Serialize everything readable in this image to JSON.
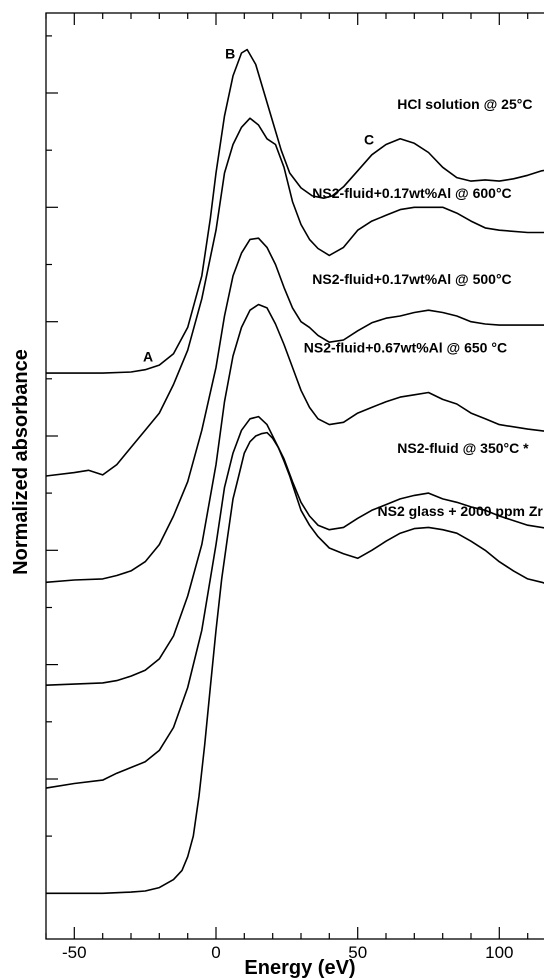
{
  "chart_data": {
    "type": "line",
    "xlabel": "Energy (eV)",
    "ylabel": "Normalized absorbance",
    "xlim": [
      -60,
      120
    ],
    "x_ticks": [
      "-50",
      "0",
      "50",
      "100"
    ],
    "x_tick_values": [
      -50,
      0,
      50,
      100
    ],
    "y_ticks_labeled": false,
    "peak_labels": [
      {
        "text": "A",
        "x": -24,
        "y": 7.65
      },
      {
        "text": "B",
        "x": 5,
        "y": 10.3
      },
      {
        "text": "C",
        "x": 54,
        "y": 9.55
      }
    ],
    "series": [
      {
        "name": "HCl solution @ 25°C",
        "label_anchor": [
          64,
          9.86
        ],
        "x": [
          -60,
          -40,
          -30,
          -25,
          -20,
          -15,
          -10,
          -5,
          -2,
          0,
          3,
          6,
          9,
          11,
          14,
          17,
          20,
          23,
          26,
          30,
          34,
          38,
          41,
          45,
          50,
          55,
          60,
          65,
          70,
          75,
          80,
          85,
          90,
          95,
          100,
          105,
          110,
          115,
          120
        ],
        "y": [
          7.55,
          7.55,
          7.56,
          7.58,
          7.62,
          7.72,
          7.95,
          8.4,
          8.9,
          9.3,
          9.8,
          10.15,
          10.35,
          10.38,
          10.25,
          10.0,
          9.75,
          9.5,
          9.3,
          9.17,
          9.1,
          9.08,
          9.1,
          9.18,
          9.32,
          9.46,
          9.55,
          9.6,
          9.56,
          9.48,
          9.35,
          9.26,
          9.23,
          9.24,
          9.23,
          9.25,
          9.28,
          9.32,
          9.34
        ]
      },
      {
        "name": "NS2-fluid+0.17wt%Al @ 600°C",
        "label_anchor": [
          34,
          9.08
        ],
        "x": [
          -60,
          -50,
          -45,
          -40,
          -35,
          -30,
          -25,
          -20,
          -15,
          -10,
          -5,
          0,
          3,
          6,
          9,
          12,
          15,
          18,
          21,
          24,
          27,
          30,
          33,
          36,
          40,
          45,
          50,
          55,
          60,
          65,
          70,
          75,
          80,
          85,
          90,
          95,
          100,
          110,
          120
        ],
        "y": [
          6.65,
          6.68,
          6.7,
          6.66,
          6.75,
          6.9,
          7.05,
          7.2,
          7.45,
          7.75,
          8.2,
          8.8,
          9.3,
          9.55,
          9.7,
          9.78,
          9.72,
          9.6,
          9.55,
          9.35,
          9.05,
          8.85,
          8.72,
          8.64,
          8.58,
          8.65,
          8.8,
          8.88,
          8.93,
          8.98,
          9.0,
          9.0,
          9.0,
          8.95,
          8.88,
          8.82,
          8.8,
          8.78,
          8.78
        ]
      },
      {
        "name": "NS2-fluid+0.17wt%Al @ 500°C",
        "label_anchor": [
          34,
          8.33
        ],
        "x": [
          -60,
          -50,
          -40,
          -35,
          -30,
          -25,
          -20,
          -15,
          -10,
          -5,
          0,
          3,
          6,
          9,
          12,
          15,
          18,
          21,
          24,
          27,
          30,
          33,
          36,
          40,
          45,
          50,
          55,
          60,
          65,
          70,
          75,
          80,
          85,
          90,
          95,
          100,
          110,
          120
        ],
        "y": [
          5.72,
          5.74,
          5.75,
          5.78,
          5.82,
          5.9,
          6.05,
          6.3,
          6.6,
          7.05,
          7.6,
          8.05,
          8.4,
          8.6,
          8.72,
          8.73,
          8.65,
          8.5,
          8.3,
          8.12,
          8.0,
          7.95,
          7.88,
          7.82,
          7.84,
          7.92,
          7.99,
          8.03,
          8.05,
          8.08,
          8.1,
          8.08,
          8.05,
          8.0,
          7.98,
          7.97,
          7.97,
          7.97
        ]
      },
      {
        "name": "NS2-fluid+0.67wt%Al @ 650 °C",
        "label_anchor": [
          31,
          7.73
        ],
        "x": [
          -60,
          -50,
          -40,
          -35,
          -30,
          -25,
          -20,
          -15,
          -10,
          -5,
          0,
          3,
          6,
          9,
          12,
          15,
          18,
          21,
          24,
          27,
          30,
          33,
          36,
          40,
          45,
          50,
          55,
          60,
          65,
          70,
          75,
          80,
          85,
          90,
          95,
          100,
          110,
          120
        ],
        "y": [
          4.82,
          4.83,
          4.84,
          4.86,
          4.9,
          4.95,
          5.05,
          5.25,
          5.6,
          6.05,
          6.75,
          7.3,
          7.7,
          7.95,
          8.1,
          8.15,
          8.12,
          7.98,
          7.8,
          7.6,
          7.4,
          7.25,
          7.15,
          7.1,
          7.12,
          7.2,
          7.25,
          7.3,
          7.34,
          7.36,
          7.38,
          7.32,
          7.28,
          7.2,
          7.15,
          7.1,
          7.06,
          7.03
        ]
      },
      {
        "name": "NS2-fluid @ 350°C *",
        "label_anchor": [
          64,
          6.85
        ],
        "x": [
          -60,
          -50,
          -40,
          -35,
          -30,
          -25,
          -20,
          -15,
          -10,
          -5,
          0,
          3,
          6,
          9,
          12,
          15,
          18,
          21,
          24,
          27,
          30,
          33,
          36,
          40,
          45,
          50,
          55,
          60,
          65,
          70,
          75,
          80,
          85,
          90,
          95,
          100,
          110,
          120
        ],
        "y": [
          3.92,
          3.96,
          3.99,
          4.05,
          4.1,
          4.15,
          4.25,
          4.45,
          4.8,
          5.3,
          6.05,
          6.55,
          6.85,
          7.05,
          7.15,
          7.17,
          7.1,
          6.95,
          6.8,
          6.6,
          6.42,
          6.3,
          6.22,
          6.18,
          6.2,
          6.28,
          6.35,
          6.4,
          6.45,
          6.48,
          6.5,
          6.45,
          6.42,
          6.38,
          6.35,
          6.3,
          6.22,
          6.18
        ]
      },
      {
        "name": "NS2 glass + 2000 ppm Zr",
        "label_anchor": [
          57,
          6.3
        ],
        "x": [
          -60,
          -50,
          -40,
          -30,
          -25,
          -20,
          -15,
          -12,
          -10,
          -8,
          -6,
          -4,
          -2,
          0,
          2,
          4,
          6,
          8,
          10,
          12,
          14,
          16,
          18,
          20,
          22,
          24,
          26,
          28,
          30,
          33,
          36,
          40,
          45,
          50,
          55,
          60,
          65,
          70,
          75,
          80,
          85,
          90,
          95,
          100,
          105,
          110,
          115,
          120
        ],
        "y": [
          3.0,
          3.0,
          3.0,
          3.01,
          3.02,
          3.05,
          3.12,
          3.2,
          3.32,
          3.5,
          3.85,
          4.3,
          4.8,
          5.3,
          5.75,
          6.1,
          6.45,
          6.65,
          6.85,
          6.95,
          7.0,
          7.02,
          7.03,
          6.98,
          6.9,
          6.78,
          6.65,
          6.5,
          6.35,
          6.22,
          6.12,
          6.02,
          5.97,
          5.93,
          6.0,
          6.08,
          6.15,
          6.19,
          6.2,
          6.18,
          6.15,
          6.08,
          6.0,
          5.9,
          5.82,
          5.75,
          5.72,
          5.68
        ]
      }
    ]
  }
}
